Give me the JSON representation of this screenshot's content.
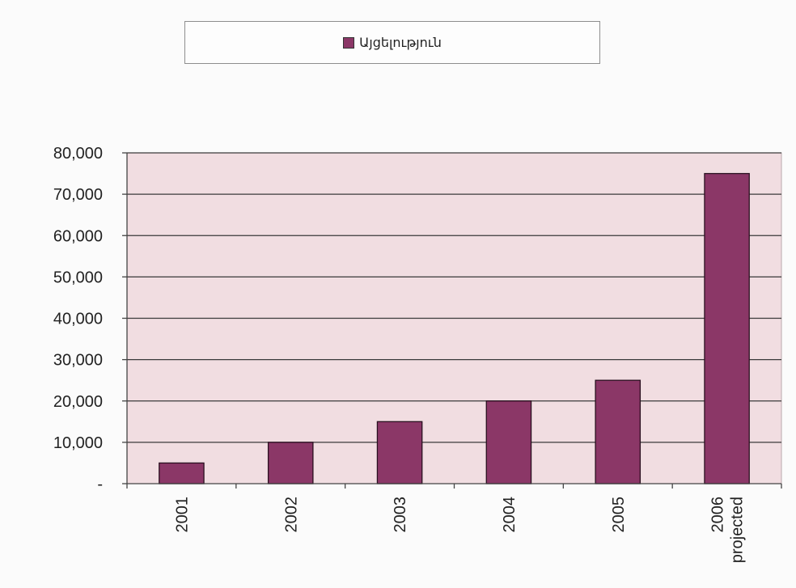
{
  "chart_data": {
    "type": "bar",
    "title": "",
    "xlabel": "",
    "ylabel": "",
    "categories": [
      "2001",
      "2002",
      "2003",
      "2004",
      "2005",
      "2006 projected"
    ],
    "category_lines": [
      [
        "2001"
      ],
      [
        "2002"
      ],
      [
        "2003"
      ],
      [
        "2004"
      ],
      [
        "2005"
      ],
      [
        "2006",
        "projected"
      ]
    ],
    "series": [
      {
        "name": "Այցելություն",
        "values": [
          5000,
          10000,
          15000,
          20000,
          25000,
          75000
        ]
      }
    ],
    "ylim": [
      0,
      80000
    ],
    "yticks": [
      0,
      10000,
      20000,
      30000,
      40000,
      50000,
      60000,
      70000,
      80000
    ],
    "ytick_labels": [
      "-",
      "10,000",
      "20,000",
      "30,000",
      "40,000",
      "50,000",
      "60,000",
      "70,000",
      "80,000"
    ],
    "grid": true,
    "legend_position": "top",
    "colors": {
      "bar": "#8b3767",
      "bar_edge": "#2a1020",
      "plot_background": "#f1dde1",
      "gridline": "#3a3a3a"
    }
  }
}
